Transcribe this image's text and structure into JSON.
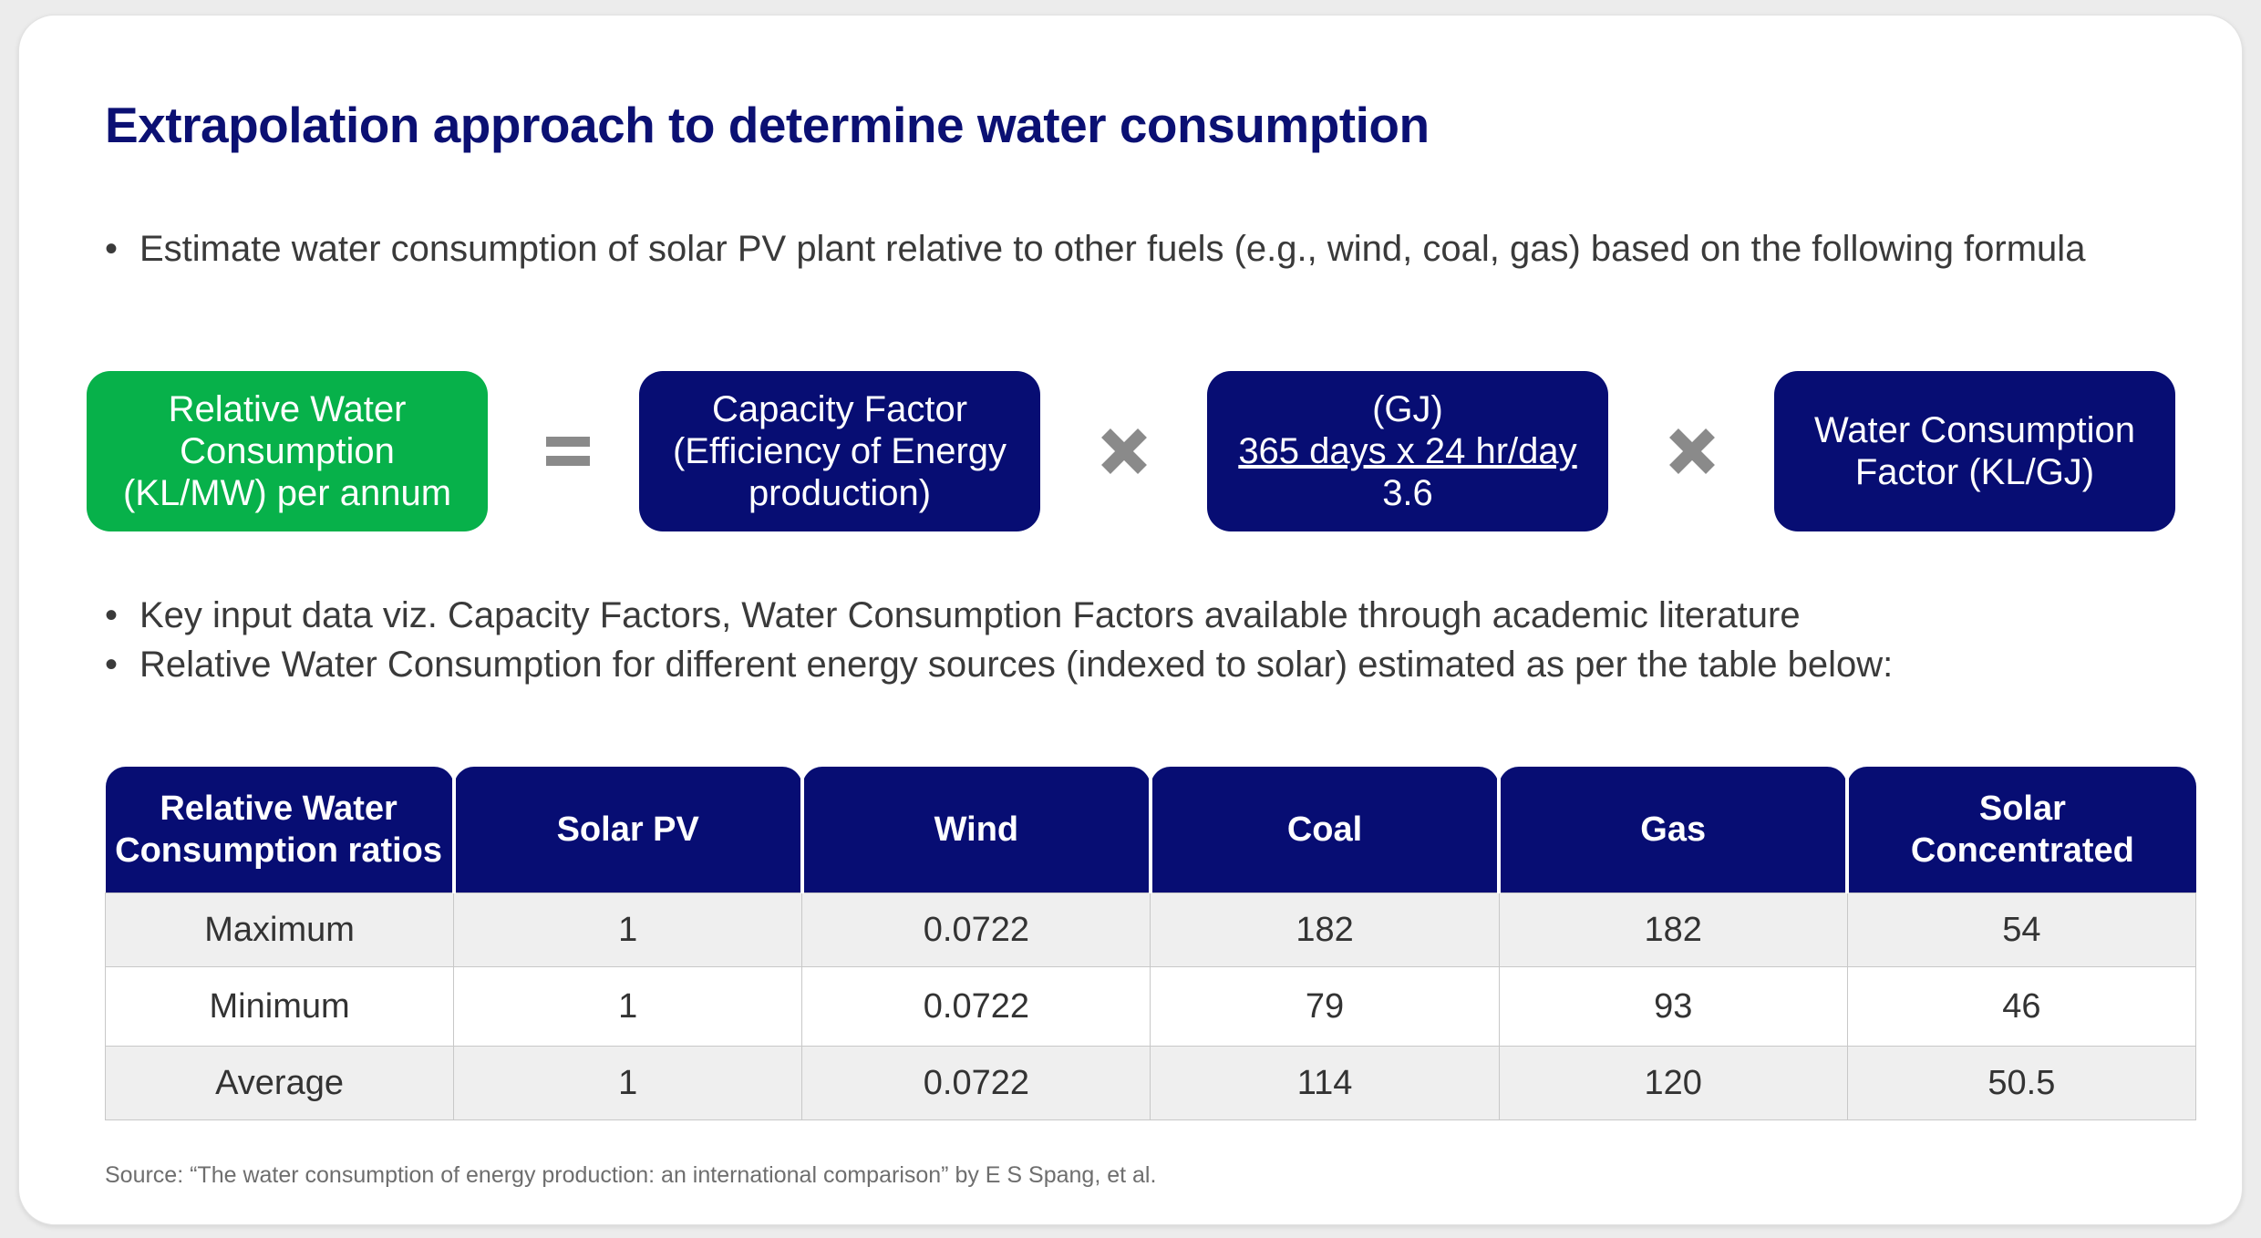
{
  "title": "Extrapolation approach to determine water consumption",
  "bullets": {
    "first": "Estimate water consumption of solar PV plant relative to other fuels (e.g., wind, coal, gas) based on the following formula",
    "second": "Key input data viz. Capacity Factors, Water Consumption Factors available through academic literature",
    "third": "Relative Water Consumption for different energy sources (indexed to solar) estimated as per the table below:"
  },
  "bullet_symbol": "•",
  "formula": {
    "result": {
      "line1": "Relative Water",
      "line2": "Consumption",
      "line3": "(KL/MW) per annum"
    },
    "equals_icon": "equals-icon",
    "capacity": {
      "line1": "Capacity Factor",
      "line2": "(Efficiency of Energy",
      "line3": "production)"
    },
    "multiply_icon": "multiply-icon",
    "energy": {
      "line1": "(GJ)",
      "line2": "365 days x 24 hr/day",
      "line3": "3.6"
    },
    "water": {
      "line1": "Water Consumption",
      "line2": "Factor (KL/GJ)"
    }
  },
  "table": {
    "headers": [
      {
        "line1": "Relative Water",
        "line2": "Consumption ratios"
      },
      {
        "line1": "Solar PV",
        "line2": ""
      },
      {
        "line1": "Wind",
        "line2": ""
      },
      {
        "line1": "Coal",
        "line2": ""
      },
      {
        "line1": "Gas",
        "line2": ""
      },
      {
        "line1": "Solar",
        "line2": "Concentrated"
      }
    ],
    "rows": [
      [
        "Maximum",
        "1",
        "0.0722",
        "182",
        "182",
        "54"
      ],
      [
        "Minimum",
        "1",
        "0.0722",
        "79",
        "93",
        "46"
      ],
      [
        "Average",
        "1",
        "0.0722",
        "114",
        "120",
        "50.5"
      ]
    ]
  },
  "source": "Source: “The water consumption of energy production: an international comparison” by E S Spang, et al.",
  "colors": {
    "navy": "#070d73",
    "green": "#07b14a",
    "title": "#0b1073",
    "operator": "#8a8a8a"
  }
}
